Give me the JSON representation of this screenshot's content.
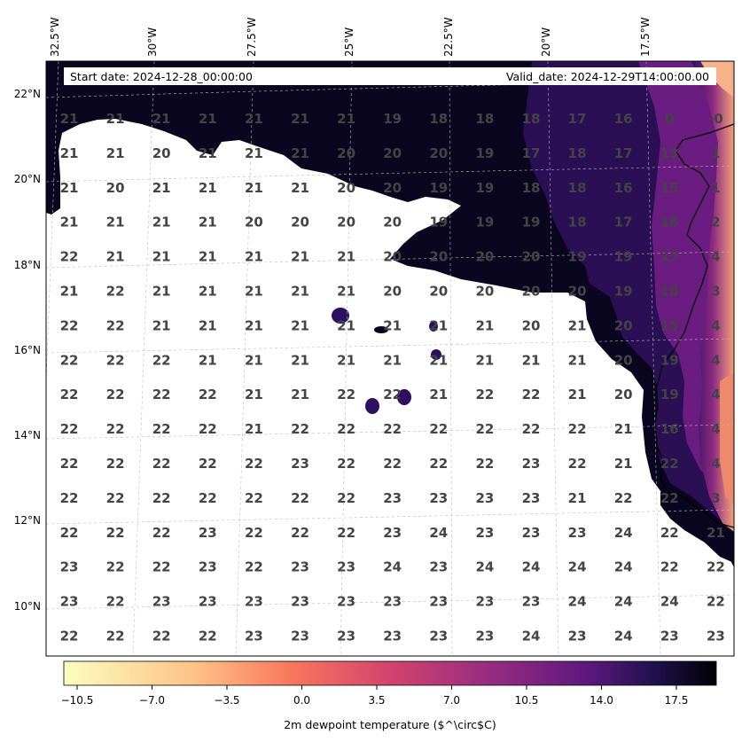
{
  "header": {
    "start_date": "Start date: 2024-12-28_00:00:00",
    "valid_date": "Valid_date: 2024-12-29T14:00:00.00"
  },
  "lon_labels": [
    "32.5°W",
    "30°W",
    "27.5°W",
    "25°W",
    "22.5°W",
    "20°W",
    "17.5°W"
  ],
  "lat_labels": [
    "22°N",
    "20°N",
    "18°N",
    "16°N",
    "14°N",
    "12°N",
    "10°N"
  ],
  "grid_values": [
    [
      "21",
      "21",
      "21",
      "21",
      "21",
      "21",
      "21",
      "19",
      "18",
      "18",
      "18",
      "17",
      "16",
      "0",
      "-0"
    ],
    [
      "21",
      "21",
      "20",
      "21",
      "21",
      "21",
      "20",
      "20",
      "20",
      "19",
      "17",
      "18",
      "17",
      "13",
      "1"
    ],
    [
      "21",
      "20",
      "21",
      "21",
      "21",
      "21",
      "20",
      "20",
      "19",
      "19",
      "18",
      "18",
      "16",
      "15",
      "1"
    ],
    [
      "21",
      "21",
      "21",
      "21",
      "20",
      "20",
      "20",
      "20",
      "19",
      "19",
      "19",
      "18",
      "17",
      "16",
      "2"
    ],
    [
      "22",
      "21",
      "21",
      "21",
      "21",
      "21",
      "21",
      "20",
      "20",
      "20",
      "20",
      "19",
      "19",
      "17",
      "4"
    ],
    [
      "21",
      "22",
      "21",
      "21",
      "21",
      "21",
      "21",
      "20",
      "20",
      "20",
      "20",
      "20",
      "19",
      "18",
      "3"
    ],
    [
      "22",
      "22",
      "21",
      "21",
      "21",
      "21",
      "21",
      "21",
      "21",
      "21",
      "20",
      "21",
      "20",
      "15",
      "4"
    ],
    [
      "22",
      "22",
      "22",
      "21",
      "21",
      "21",
      "21",
      "21",
      "21",
      "21",
      "21",
      "21",
      "20",
      "19",
      "4"
    ],
    [
      "22",
      "22",
      "22",
      "22",
      "21",
      "21",
      "22",
      "22",
      "21",
      "22",
      "22",
      "21",
      "20",
      "19",
      "4"
    ],
    [
      "22",
      "22",
      "22",
      "22",
      "21",
      "22",
      "22",
      "22",
      "22",
      "22",
      "22",
      "22",
      "21",
      "16",
      "4"
    ],
    [
      "22",
      "22",
      "22",
      "22",
      "22",
      "23",
      "22",
      "22",
      "22",
      "22",
      "23",
      "22",
      "21",
      "22",
      "4"
    ],
    [
      "22",
      "22",
      "22",
      "22",
      "22",
      "22",
      "22",
      "23",
      "23",
      "23",
      "23",
      "21",
      "22",
      "22",
      "3"
    ],
    [
      "22",
      "22",
      "22",
      "23",
      "22",
      "22",
      "22",
      "23",
      "24",
      "23",
      "23",
      "23",
      "24",
      "22",
      "21"
    ],
    [
      "23",
      "22",
      "22",
      "23",
      "22",
      "23",
      "23",
      "24",
      "23",
      "24",
      "24",
      "24",
      "24",
      "22",
      "22"
    ],
    [
      "23",
      "22",
      "23",
      "23",
      "23",
      "23",
      "23",
      "23",
      "23",
      "23",
      "23",
      "24",
      "24",
      "24",
      "22"
    ],
    [
      "22",
      "22",
      "22",
      "22",
      "23",
      "23",
      "23",
      "23",
      "23",
      "23",
      "24",
      "23",
      "24",
      "23",
      "23"
    ]
  ],
  "colorbar": {
    "ticks": [
      "−10.5",
      "−7.0",
      "−3.5",
      "0.0",
      "3.5",
      "7.0",
      "10.5",
      "14.0",
      "17.5"
    ],
    "label": "2m dewpoint temperature ($^\\circ$C)",
    "colors": [
      "#fcfdbf",
      "#fe9f6d",
      "#de4968",
      "#8c2981",
      "#3b0f70",
      "#000004"
    ]
  }
}
